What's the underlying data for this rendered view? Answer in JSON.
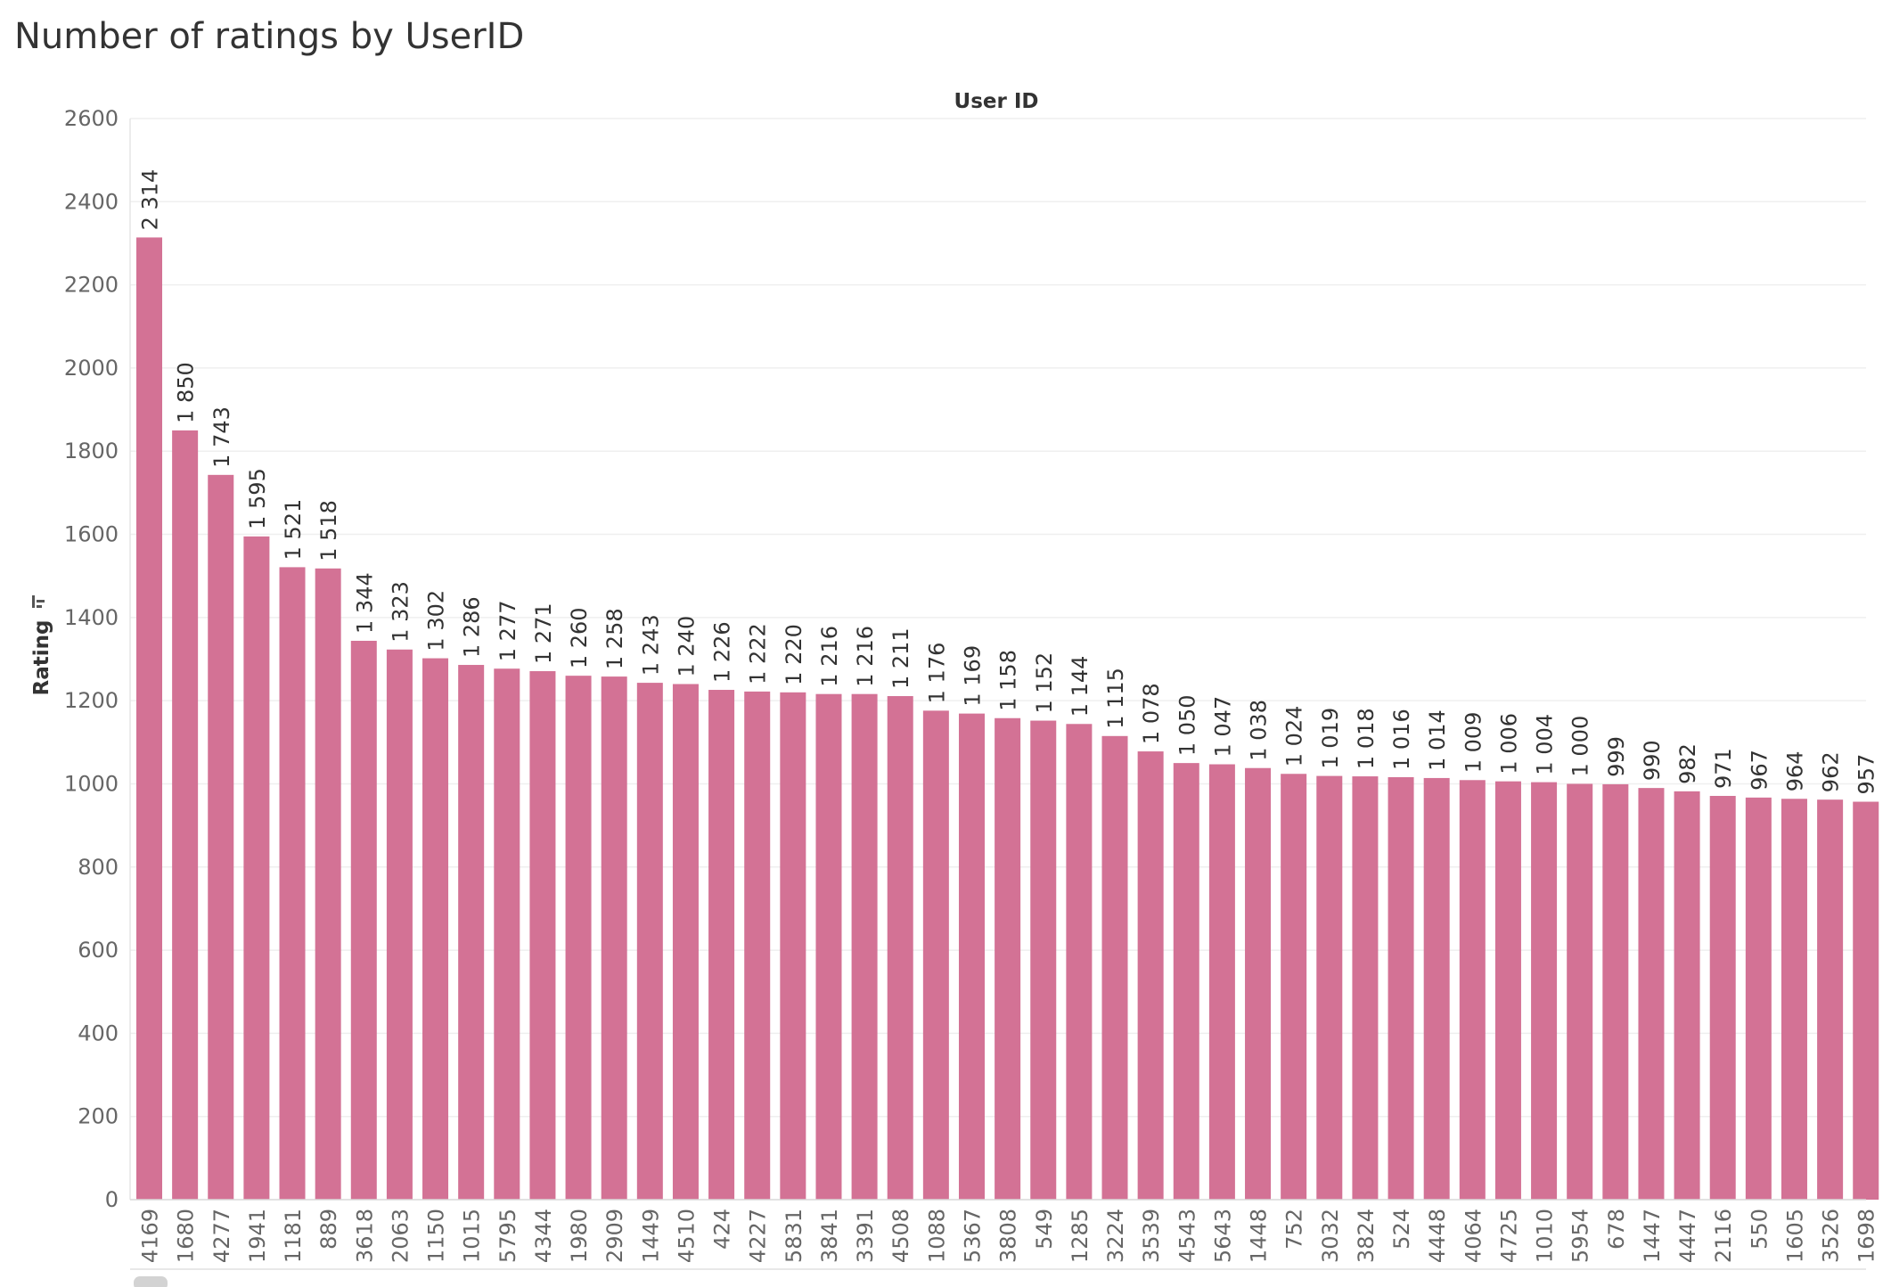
{
  "title": "Number of ratings by UserID",
  "chart_data": {
    "type": "bar",
    "title": "Number of ratings by UserID",
    "xlabel": "User ID",
    "ylabel": "Rating",
    "ylim": [
      0,
      2600
    ],
    "yticks": [
      0,
      200,
      400,
      600,
      800,
      1000,
      1200,
      1400,
      1600,
      1800,
      2000,
      2200,
      2400,
      2600
    ],
    "grid": true,
    "bar_color": "#d37295",
    "categories": [
      "4169",
      "1680",
      "4277",
      "1941",
      "1181",
      "889",
      "3618",
      "2063",
      "1150",
      "1015",
      "5795",
      "4344",
      "1980",
      "2909",
      "1449",
      "4510",
      "424",
      "4227",
      "5831",
      "3841",
      "3391",
      "4508",
      "1088",
      "5367",
      "3808",
      "549",
      "1285",
      "3224",
      "3539",
      "4543",
      "5643",
      "1448",
      "752",
      "3032",
      "3824",
      "524",
      "4448",
      "4064",
      "4725",
      "1010",
      "5954",
      "678",
      "1447",
      "4447",
      "2116",
      "550",
      "1605",
      "3526",
      "1698"
    ],
    "values": [
      2314,
      1850,
      1743,
      1595,
      1521,
      1518,
      1344,
      1323,
      1302,
      1286,
      1277,
      1271,
      1260,
      1258,
      1243,
      1240,
      1226,
      1222,
      1220,
      1216,
      1216,
      1211,
      1176,
      1169,
      1158,
      1152,
      1144,
      1115,
      1078,
      1050,
      1047,
      1038,
      1024,
      1019,
      1018,
      1016,
      1014,
      1009,
      1006,
      1004,
      1000,
      999,
      990,
      982,
      971,
      967,
      964,
      962,
      957
    ],
    "data_labels": [
      "2 314",
      "1 850",
      "1 743",
      "1 595",
      "1 521",
      "1 518",
      "1 344",
      "1 323",
      "1 302",
      "1 286",
      "1 277",
      "1 271",
      "1 260",
      "1 258",
      "1 243",
      "1 240",
      "1 226",
      "1 222",
      "1 220",
      "1 216",
      "1 216",
      "1 211",
      "1 176",
      "1 169",
      "1 158",
      "1 152",
      "1 144",
      "1 115",
      "1 078",
      "1 050",
      "1 047",
      "1 038",
      "1 024",
      "1 019",
      "1 018",
      "1 016",
      "1 014",
      "1 009",
      "1 006",
      "1 004",
      "1 000",
      "999",
      "990",
      "982",
      "971",
      "967",
      "964",
      "962",
      "957"
    ]
  }
}
